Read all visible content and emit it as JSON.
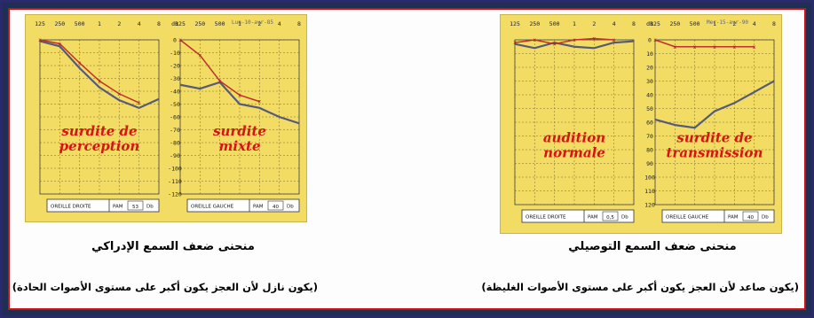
{
  "left_figure": {
    "freq_labels": [
      "125",
      "250",
      "500",
      "1",
      "2",
      "4",
      "8"
    ],
    "db_ticks": [
      "0",
      "-10",
      "-20",
      "-30",
      "-40",
      "-50",
      "-60",
      "-70",
      "-80",
      "-90",
      "-100",
      "-110",
      "-120"
    ],
    "date_note": "Lun-10-avr-85",
    "chart1": {
      "label_line1": "surdite de",
      "label_line2": "perception",
      "box_ear": "OREILLE DROITE",
      "box_code": "PAM",
      "box_value": "53",
      "box_unit": "Db",
      "red_values": [
        0,
        -3,
        -18,
        -32,
        -42,
        -49
      ],
      "blue_values": [
        -1,
        -5,
        -22,
        -37,
        -47,
        -53,
        -46
      ]
    },
    "chart2": {
      "label_line1": "surdite",
      "label_line2": "mixte",
      "box_ear": "OREILLE GAUCHE",
      "box_code": "PAM",
      "box_value": "40",
      "box_unit": "Db",
      "red_values": [
        0,
        -12,
        -32,
        -43,
        -48
      ],
      "blue_values": [
        -35,
        -38,
        -33,
        -50,
        -53,
        -60,
        -65
      ]
    },
    "caption_title": "منحنى ضعف السمع الإدراكي",
    "caption_note": "(يكون نازل لأن العجز يكون أكبر على مستوى الأصوات الحادة)"
  },
  "right_figure": {
    "freq_labels": [
      "125",
      "250",
      "500",
      "1",
      "2",
      "4",
      "8"
    ],
    "db_ticks": [
      "0",
      "10",
      "20",
      "30",
      "40",
      "50",
      "60",
      "70",
      "80",
      "90",
      "100",
      "110",
      "120"
    ],
    "date_note": "Mer-15-avr-90",
    "chart1": {
      "label_line1": "audition",
      "label_line2": "normale",
      "box_ear": "OREILLE DROITE",
      "box_code": "PAM",
      "box_value": "0,5",
      "box_unit": "Db",
      "red_values": [
        2,
        0,
        3,
        0,
        -1,
        0
      ],
      "blue_values": [
        3,
        6,
        2,
        5,
        6,
        2,
        1
      ]
    },
    "chart2": {
      "label_line1": "surdite de",
      "label_line2": "transmission",
      "box_ear": "OREILLE GAUCHE",
      "box_code": "PAM",
      "box_value": "40",
      "box_unit": "Db",
      "red_values": [
        0,
        5,
        5,
        5,
        5,
        5
      ],
      "blue_values": [
        58,
        62,
        64,
        52,
        46,
        38,
        30
      ]
    },
    "caption_title": "منحنى ضعف السمع التوصيلي",
    "caption_note": "(يكون صاعد لأن العجز يكون أكبر على مستوى الأصوات الغليظة)"
  }
}
